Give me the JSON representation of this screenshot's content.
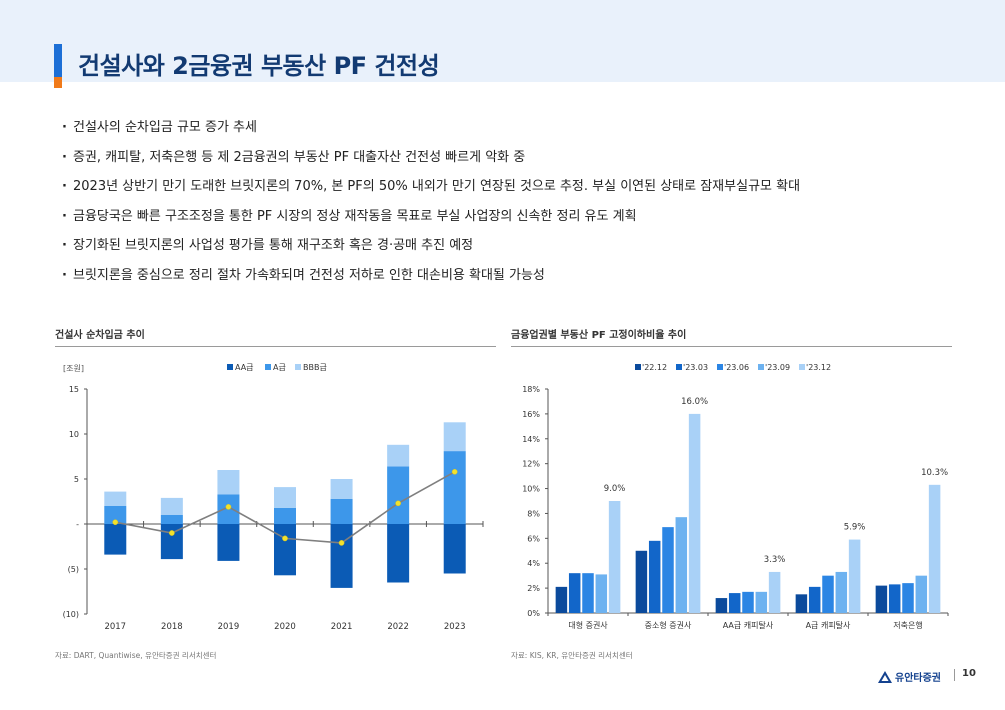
{
  "page": {
    "title": "건설사와 2금융권 부동산 PF 건전성",
    "number": "10"
  },
  "bullets": [
    "건설사의 순차입금 규모 증가 추세",
    "증권, 캐피탈, 저축은행 등 제 2금융권의 부동산 PF 대출자산 건전성 빠르게 악화 중",
    "2023년 상반기 만기 도래한 브릿지론의 70%, 본 PF의 50% 내외가 만기 연장된 것으로 추정. 부실 이연된 상태로 잠재부실규모 확대",
    "금융당국은 빠른 구조조정을 통한  PF  시장의 정상 재작동을 목표로 부실 사업장의 신속한 정리 유도 계획",
    "장기화된 브릿지론의 사업성 평가를 통해 재구조화 혹은 경·공매 추진 예정",
    "브릿지론을 중심으로 정리 절차 가속화되며 건전성 저하로 인한 대손비용 확대될 가능성"
  ],
  "footer": {
    "logo_text": "유안타증권"
  },
  "chart_data": [
    {
      "type": "bar",
      "stacked": true,
      "title": "건설사 순차입금 추이",
      "unit_label": "[조원]",
      "categories": [
        "2017",
        "2018",
        "2019",
        "2020",
        "2021",
        "2022",
        "2023"
      ],
      "series": [
        {
          "name": "AA급",
          "color": "#0b5bb5",
          "values": [
            -3.4,
            -3.9,
            -4.1,
            -5.7,
            -7.1,
            -6.5,
            -5.5
          ]
        },
        {
          "name": "A급",
          "color": "#3d97ea",
          "values": [
            2.0,
            1.0,
            3.3,
            1.8,
            2.8,
            6.4,
            8.1
          ]
        },
        {
          "name": "BBB급",
          "color": "#a9d1f7",
          "values": [
            1.6,
            1.9,
            2.7,
            2.3,
            2.2,
            2.4,
            3.2
          ]
        }
      ],
      "line": {
        "name": "합계",
        "color": "#7f7f7f",
        "marker_color": "#f2e12c",
        "values": [
          0.2,
          -1.0,
          1.9,
          -1.6,
          -2.1,
          2.3,
          5.8
        ]
      },
      "ylim": [
        -10,
        15
      ],
      "yticks": [
        15,
        10,
        5,
        0,
        -5,
        -10
      ],
      "ytick_labels": [
        "15",
        "10",
        "5",
        "-",
        "(5)",
        "(10)"
      ],
      "source": "자료: DART, Quantiwise, 유안타증권 리서치센터"
    },
    {
      "type": "bar",
      "title": "금융업권별 부동산 PF 고정이하비율 추이",
      "categories": [
        "대형 증권사",
        "중소형 증권사",
        "AA급 캐피탈사",
        "A급 캐피탈사",
        "저축은행"
      ],
      "series": [
        {
          "name": "'22.12",
          "color": "#0b4a9c",
          "values": [
            2.1,
            5.0,
            1.2,
            1.5,
            2.2
          ]
        },
        {
          "name": "'23.03",
          "color": "#1266c9",
          "values": [
            3.2,
            5.8,
            1.6,
            2.1,
            2.3
          ]
        },
        {
          "name": "'23.06",
          "color": "#2b85e4",
          "values": [
            3.2,
            6.9,
            1.7,
            3.0,
            2.4
          ]
        },
        {
          "name": "'23.09",
          "color": "#6db2f0",
          "values": [
            3.1,
            7.7,
            1.7,
            3.3,
            3.0
          ]
        },
        {
          "name": "'23.12",
          "color": "#a9d1f7",
          "values": [
            9.0,
            16.0,
            3.3,
            5.9,
            10.3
          ]
        }
      ],
      "data_labels": [
        "9.0%",
        "16.0%",
        "3.3%",
        "5.9%",
        "10.3%"
      ],
      "ylim": [
        0,
        18
      ],
      "yticks": [
        0,
        2,
        4,
        6,
        8,
        10,
        12,
        14,
        16,
        18
      ],
      "ytick_labels": [
        "0%",
        "2%",
        "4%",
        "6%",
        "8%",
        "10%",
        "12%",
        "14%",
        "16%",
        "18%"
      ],
      "source": "자료: KIS, KR, 유안타증권 리서치센터"
    }
  ]
}
